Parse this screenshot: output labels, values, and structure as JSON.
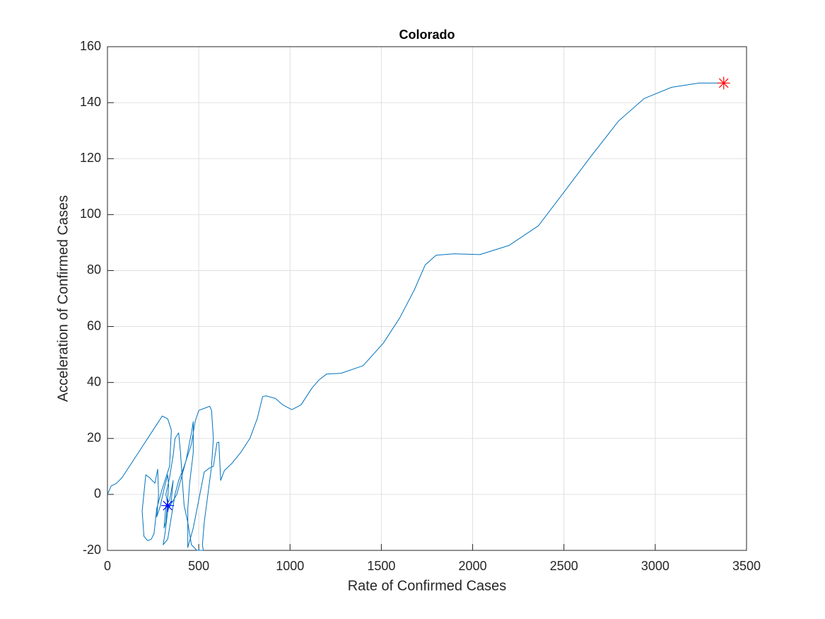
{
  "chart_data": {
    "type": "line",
    "title": "Colorado",
    "xlabel": "Rate of Confirmed Cases",
    "ylabel": "Acceleration of Confirmed Cases",
    "xlim": [
      0,
      3500
    ],
    "ylim": [
      -20,
      160
    ],
    "xticks": [
      0,
      500,
      1000,
      1500,
      2000,
      2500,
      3000,
      3500
    ],
    "yticks": [
      -20,
      0,
      20,
      40,
      60,
      80,
      100,
      120,
      140,
      160
    ],
    "grid": true,
    "series": [
      {
        "color": "#0072bd",
        "marker": "none",
        "x": [
          0,
          20,
          50,
          80,
          130,
          180,
          230,
          280,
          300,
          330,
          350,
          340,
          300,
          270,
          255,
          240,
          220,
          200,
          190,
          210,
          230,
          260,
          275,
          280,
          270,
          290,
          310,
          330,
          335,
          320,
          310,
          320,
          340,
          360,
          350,
          330,
          315,
          305,
          330,
          345,
          360,
          370,
          390,
          420,
          460,
          480,
          500,
          540,
          560,
          570,
          580,
          570,
          550,
          530,
          520,
          525,
          490,
          460,
          440,
          420,
          410,
          400,
          390,
          370,
          360,
          340,
          320,
          335,
          380,
          430,
          460,
          470,
          470,
          450,
          440,
          440,
          470,
          500,
          530,
          560,
          580,
          600,
          610,
          620,
          640,
          680,
          730,
          780,
          820,
          850,
          870,
          920,
          960,
          1010,
          1060,
          1120,
          1160,
          1200,
          1280,
          1400,
          1510,
          1600,
          1680,
          1740,
          1800,
          1900,
          2040,
          2200,
          2360,
          2500,
          2650,
          2800,
          2940,
          3090,
          3240,
          3375
        ],
        "values": [
          0,
          3,
          4,
          6,
          11,
          16,
          21,
          26,
          28,
          27,
          23,
          10,
          2,
          -5,
          -14,
          -16,
          -16.5,
          -15,
          -6,
          7,
          6,
          4,
          9,
          0,
          -8,
          -4,
          2,
          7,
          3,
          -10,
          -12,
          -4,
          -2,
          5,
          -2,
          -6,
          -14,
          -18,
          -16,
          -10,
          -4,
          0,
          5,
          10,
          18,
          26,
          30,
          31,
          31.5,
          30,
          20,
          10,
          0,
          -10,
          -18,
          -20,
          -20,
          -18,
          -10,
          -4,
          5,
          15,
          22,
          20,
          14,
          6,
          0,
          -5,
          0,
          12,
          22,
          26,
          15,
          4,
          -5,
          -19,
          -12,
          -2,
          8,
          9.5,
          10,
          18.5,
          18.7,
          5,
          8.5,
          11,
          15,
          20,
          27,
          35,
          35.2,
          34.3,
          32,
          30.3,
          32,
          38,
          41,
          43,
          43.3,
          46,
          54,
          63,
          73,
          82,
          85.5,
          86,
          85.7,
          89,
          96,
          108,
          121,
          133.5,
          141.5,
          145.5,
          147,
          147
        ]
      },
      {
        "color": "#0000ff",
        "marker": "*",
        "x": [
          330
        ],
        "values": [
          -4
        ]
      },
      {
        "color": "#ff0000",
        "marker": "*",
        "x": [
          3375
        ],
        "values": [
          147
        ]
      }
    ]
  }
}
